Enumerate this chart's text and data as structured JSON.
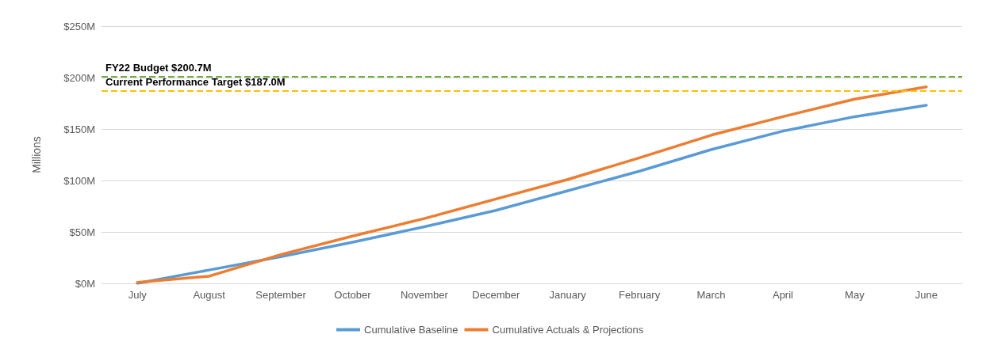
{
  "chart_data": {
    "type": "line",
    "ylabel": "Millions",
    "categories": [
      "July",
      "August",
      "September",
      "October",
      "November",
      "December",
      "January",
      "February",
      "March",
      "April",
      "May",
      "June"
    ],
    "series": [
      {
        "name": "Cumulative Baseline",
        "color": "#5b9bd5",
        "values": [
          0,
          13,
          26,
          40,
          55,
          71,
          90,
          109,
          130,
          148,
          162,
          173
        ]
      },
      {
        "name": "Cumulative Actuals & Projections",
        "color": "#ed7d31",
        "values": [
          1,
          7,
          28,
          46,
          63,
          82,
          101,
          122,
          144,
          162,
          179,
          191
        ]
      }
    ],
    "ylim": [
      0,
      250
    ],
    "yticks": [
      {
        "value": 0,
        "label": "$0M"
      },
      {
        "value": 50,
        "label": "$50M"
      },
      {
        "value": 100,
        "label": "$100M"
      },
      {
        "value": 150,
        "label": "$150M"
      },
      {
        "value": 200,
        "label": "$200M"
      },
      {
        "value": 250,
        "label": "$250M"
      }
    ],
    "ref_lines": [
      {
        "axis": "y",
        "value": 200.7,
        "label": "FY22 Budget $200.7M",
        "color": "#70ad47",
        "line_style": "dashed"
      },
      {
        "axis": "y",
        "value": 187.0,
        "label": "Current Performance Target $187.0M",
        "color": "#ffc000",
        "line_style": "dashed"
      }
    ],
    "grid": "y",
    "legend": "bottom",
    "marker": "none",
    "line_style": "solid"
  }
}
